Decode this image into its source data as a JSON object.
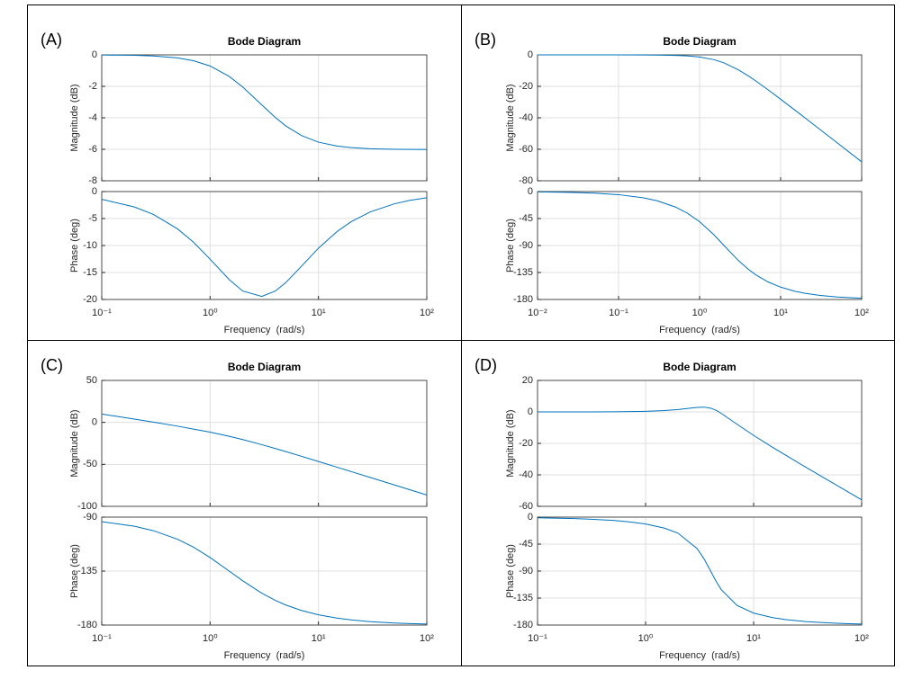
{
  "chart_data": [
    {
      "type": "line",
      "label": "(A)",
      "title": "Bode Diagram",
      "xlabel": "Frequency  (rad/s)",
      "xscale": "log",
      "grid": true,
      "xlim": [
        0.1,
        100
      ],
      "xticks": [
        {
          "value": 0.1,
          "label": "10⁻¹"
        },
        {
          "value": 1,
          "label": "10⁰"
        },
        {
          "value": 10,
          "label": "10¹"
        },
        {
          "value": 100,
          "label": "10²"
        }
      ],
      "x": [
        0.1,
        0.2,
        0.3,
        0.5,
        0.7,
        1,
        1.5,
        2,
        3,
        4,
        5,
        7,
        10,
        15,
        20,
        30,
        50,
        70,
        100
      ],
      "subplots": [
        {
          "ylabel": "Magnitude (dB)",
          "ylim": [
            -8,
            0
          ],
          "yticks": [
            -8,
            -6,
            -4,
            -2,
            0
          ],
          "color": "#0072bd",
          "values": [
            -0.008,
            -0.032,
            -0.072,
            -0.196,
            -0.371,
            -0.706,
            -1.367,
            -2.041,
            -3.18,
            -3.979,
            -4.517,
            -5.134,
            -5.546,
            -5.799,
            -5.894,
            -5.963,
            -6.0,
            -6.01,
            -6.015
          ]
        },
        {
          "ylabel": "Phase (deg)",
          "ylim": [
            -20,
            0
          ],
          "yticks": [
            -20,
            -15,
            -10,
            -5,
            0
          ],
          "color": "#0072bd",
          "values": [
            -1.43,
            -2.85,
            -4.24,
            -6.91,
            -9.36,
            -12.53,
            -16.31,
            -18.43,
            -19.44,
            -18.43,
            -16.86,
            -13.8,
            -10.49,
            -7.34,
            -5.6,
            -3.78,
            -2.28,
            -1.63,
            -1.15
          ]
        }
      ]
    },
    {
      "type": "line",
      "label": "(B)",
      "title": "Bode Diagram",
      "xlabel": "Frequency  (rad/s)",
      "xscale": "log",
      "grid": true,
      "xlim": [
        0.01,
        100
      ],
      "xticks": [
        {
          "value": 0.01,
          "label": "10⁻²"
        },
        {
          "value": 0.1,
          "label": "10⁻¹"
        },
        {
          "value": 1,
          "label": "10⁰"
        },
        {
          "value": 10,
          "label": "10¹"
        },
        {
          "value": 100,
          "label": "10²"
        }
      ],
      "x": [
        0.01,
        0.02,
        0.05,
        0.1,
        0.2,
        0.3,
        0.5,
        0.7,
        1,
        1.5,
        2,
        3,
        4,
        5,
        7,
        10,
        15,
        20,
        30,
        50,
        100
      ],
      "subplots": [
        {
          "ylabel": "Magnitude (dB)",
          "ylim": [
            -80,
            0
          ],
          "yticks": [
            -80,
            -60,
            -40,
            -20,
            0
          ],
          "color": "#0072bd",
          "values": [
            0.0,
            -0.0005,
            -0.003,
            -0.013,
            -0.054,
            -0.122,
            -0.34,
            -0.671,
            -1.375,
            -3.04,
            -5.105,
            -9.471,
            -13.416,
            -16.795,
            -22.208,
            -28.176,
            -35.098,
            -40.054,
            -47.068,
            -55.926,
            -67.961
          ]
        },
        {
          "ylabel": "Phase (deg)",
          "ylim": [
            -180,
            0
          ],
          "yticks": [
            -180,
            -135,
            -90,
            -45,
            0
          ],
          "color": "#0072bd",
          "values": [
            -0.52,
            -1.03,
            -2.58,
            -5.16,
            -10.3,
            -15.44,
            -25.64,
            -35.68,
            -50.19,
            -72.04,
            -90,
            -114.84,
            -129.81,
            -139.4,
            -150.75,
            -159.44,
            -166.27,
            -169.7,
            -173.13,
            -175.88,
            -177.94
          ]
        }
      ]
    },
    {
      "type": "line",
      "label": "(C)",
      "title": "Bode Diagram",
      "xlabel": "Frequency  (rad/s)",
      "xscale": "log",
      "grid": true,
      "xlim": [
        0.1,
        100
      ],
      "xticks": [
        {
          "value": 0.1,
          "label": "10⁻¹"
        },
        {
          "value": 1,
          "label": "10⁰"
        },
        {
          "value": 10,
          "label": "10¹"
        },
        {
          "value": 100,
          "label": "10²"
        }
      ],
      "x": [
        0.1,
        0.2,
        0.3,
        0.5,
        0.7,
        1,
        1.5,
        2,
        3,
        4,
        5,
        7,
        10,
        15,
        20,
        30,
        50,
        70,
        100
      ],
      "subplots": [
        {
          "ylabel": "Magnitude (dB)",
          "ylim": [
            -100,
            50
          ],
          "yticks": [
            -100,
            -50,
            0,
            50
          ],
          "color": "#0072bd",
          "values": [
            9.98,
            3.9,
            0.29,
            -4.44,
            -7.96,
            -11.6,
            -16.53,
            -20.46,
            -26.53,
            -31.13,
            -34.81,
            -40.48,
            -46.58,
            -53.57,
            -58.54,
            -65.57,
            -74.44,
            -80.28,
            -86.48
          ]
        },
        {
          "ylabel": "Phase (deg)",
          "ylim": [
            -180,
            -90
          ],
          "yticks": [
            -180,
            -135,
            -90
          ],
          "color": "#0072bd",
          "values": [
            -93.81,
            -97.59,
            -101.31,
            -108.43,
            -115.02,
            -123.69,
            -135,
            -143.13,
            -153.43,
            -159.44,
            -163.3,
            -167.91,
            -171.47,
            -174.29,
            -175.71,
            -177.14,
            -178.28,
            -178.77,
            -179.14
          ]
        }
      ]
    },
    {
      "type": "line",
      "label": "(D)",
      "title": "Bode Diagram",
      "xlabel": "Frequency  (rad/s)",
      "xscale": "log",
      "grid": true,
      "xlim": [
        0.1,
        100
      ],
      "xticks": [
        {
          "value": 0.1,
          "label": "10⁻¹"
        },
        {
          "value": 1,
          "label": "10⁰"
        },
        {
          "value": 10,
          "label": "10¹"
        },
        {
          "value": 100,
          "label": "10²"
        }
      ],
      "x": [
        0.1,
        0.2,
        0.3,
        0.5,
        0.7,
        1,
        1.5,
        2,
        3,
        3.5,
        4,
        4.5,
        5,
        7,
        10,
        15,
        20,
        30,
        50,
        70,
        100
      ],
      "subplots": [
        {
          "ylabel": "Magnitude (dB)",
          "ylim": [
            -60,
            20
          ],
          "yticks": [
            -60,
            -40,
            -20,
            0,
            20
          ],
          "color": "#0072bd",
          "values": [
            0.004,
            0.015,
            0.035,
            0.097,
            0.189,
            0.386,
            0.863,
            1.506,
            2.871,
            3.035,
            2.384,
            0.96,
            -0.86,
            -7.798,
            -14.938,
            -22.523,
            -27.711,
            -34.893,
            -43.837,
            -49.701,
            -55.908
          ]
        },
        {
          "ylabel": "Phase (deg)",
          "ylim": [
            -180,
            0
          ],
          "yticks": [
            -180,
            -135,
            -90,
            -45,
            0
          ],
          "color": "#0072bd",
          "values": [
            -1.09,
            -2.18,
            -3.28,
            -5.51,
            -7.81,
            -11.46,
            -18.35,
            -26.87,
            -52.5,
            -70.58,
            -90,
            -107.26,
            -120.63,
            -147.18,
            -160.1,
            -167.69,
            -171.0,
            -174.11,
            -176.5,
            -177.51,
            -178.26
          ]
        }
      ]
    }
  ]
}
